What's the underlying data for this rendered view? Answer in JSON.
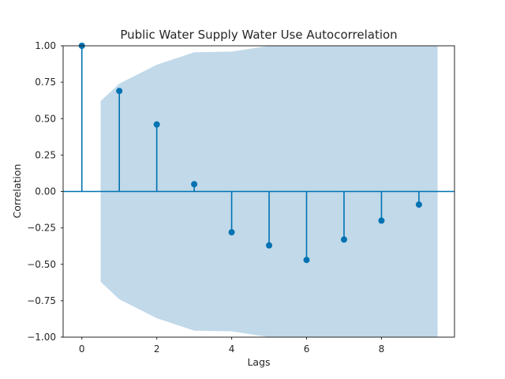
{
  "chart_data": {
    "type": "stem",
    "title": "Public Water Supply Water Use Autocorrelation",
    "xlabel": "Lags",
    "ylabel": "Correlation",
    "xlim": [
      -0.5,
      9.95
    ],
    "ylim": [
      -1.0,
      1.0
    ],
    "x_ticks": [
      0,
      2,
      4,
      6,
      8
    ],
    "y_ticks": [
      -1.0,
      -0.75,
      -0.5,
      -0.25,
      0.0,
      0.25,
      0.5,
      0.75,
      1.0
    ],
    "x_tick_labels": [
      "0",
      "2",
      "4",
      "6",
      "8"
    ],
    "y_tick_labels": [
      "−1.00",
      "−0.75",
      "−0.50",
      "−0.25",
      "0.00",
      "0.25",
      "0.50",
      "0.75",
      "1.00"
    ],
    "lags": [
      0,
      1,
      2,
      3,
      4,
      5,
      6,
      7,
      8,
      9
    ],
    "values": [
      1.0,
      0.69,
      0.46,
      0.05,
      -0.28,
      -0.37,
      -0.47,
      -0.33,
      -0.2,
      -0.09
    ],
    "confidence_band": {
      "x": [
        0.5,
        1,
        2,
        3,
        4,
        5,
        6,
        7,
        8,
        9,
        9.5
      ],
      "upper": [
        0.62,
        0.74,
        0.87,
        0.955,
        0.96,
        1.0,
        1.02,
        1.05,
        1.08,
        1.1,
        1.1
      ]
    },
    "grid": false,
    "colors": {
      "stem": "#0072b2",
      "band": "#c1d9e9",
      "frame": "#262626"
    }
  }
}
